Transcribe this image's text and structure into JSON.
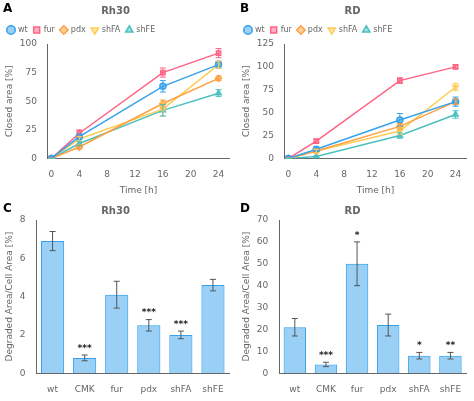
{
  "chart_data": [
    {
      "type": "line",
      "panel_label": "A",
      "title": "Rh30",
      "xlabel": "Time [h]",
      "ylabel": "Closed area [%]",
      "x": [
        0,
        4,
        16,
        24
      ],
      "series": [
        {
          "name": "wt",
          "values": [
            0,
            19,
            63,
            82
          ],
          "errors": [
            0,
            2,
            5,
            3
          ],
          "marker": "circle",
          "line_style": "solid"
        },
        {
          "name": "fur",
          "values": [
            0,
            22,
            75,
            92
          ],
          "errors": [
            0,
            3,
            4,
            4
          ],
          "marker": "square",
          "line_style": "solid"
        },
        {
          "name": "pdx",
          "values": [
            0,
            10,
            48,
            70
          ],
          "errors": [
            0,
            2,
            3,
            2
          ],
          "marker": "diamond",
          "line_style": "solid"
        },
        {
          "name": "shFA",
          "values": [
            0,
            17,
            43,
            82
          ],
          "errors": [
            0,
            2,
            6,
            3
          ],
          "marker": "triangle-down",
          "line_style": "solid"
        },
        {
          "name": "shFE",
          "values": [
            0,
            13,
            42,
            57
          ],
          "errors": [
            0,
            2,
            5,
            3
          ],
          "marker": "triangle-up",
          "line_style": "solid"
        }
      ],
      "xlim": [
        -0.5,
        25.5
      ],
      "xticks": [
        0,
        4,
        8,
        12,
        16,
        20,
        24
      ],
      "ylim": [
        0,
        100
      ],
      "yticks": [
        0,
        25,
        50,
        75,
        100
      ],
      "grid": false,
      "legend": "upper left"
    },
    {
      "type": "line",
      "panel_label": "B",
      "title": "RD",
      "xlabel": "Time [h]",
      "ylabel": "Closed area [%]",
      "x": [
        0,
        4,
        16,
        24
      ],
      "series": [
        {
          "name": "wt",
          "values": [
            0,
            10,
            42,
            62
          ],
          "errors": [
            0,
            2,
            7,
            5
          ],
          "marker": "circle",
          "line_style": "solid"
        },
        {
          "name": "fur",
          "values": [
            0,
            19,
            85,
            100
          ],
          "errors": [
            0,
            2,
            3,
            2
          ],
          "marker": "square",
          "line_style": "solid"
        },
        {
          "name": "pdx",
          "values": [
            0,
            8,
            35,
            62
          ],
          "errors": [
            0,
            2,
            3,
            3
          ],
          "marker": "diamond",
          "line_style": "solid"
        },
        {
          "name": "shFA",
          "values": [
            0,
            8,
            30,
            78
          ],
          "errors": [
            0,
            2,
            4,
            4
          ],
          "marker": "triangle-down",
          "line_style": "solid"
        },
        {
          "name": "shFE",
          "values": [
            0,
            2,
            25,
            48
          ],
          "errors": [
            0,
            1,
            3,
            4
          ],
          "marker": "triangle-up",
          "line_style": "solid"
        }
      ],
      "xlim": [
        -0.5,
        25.5
      ],
      "xticks": [
        0,
        4,
        8,
        12,
        16,
        20,
        24
      ],
      "ylim": [
        0,
        125
      ],
      "yticks": [
        0,
        25,
        50,
        75,
        100,
        125
      ],
      "grid": false,
      "legend": "upper left"
    },
    {
      "type": "bar",
      "panel_label": "C",
      "title": "Rh30",
      "ylabel": "Degraded Area/Cell Area [%]",
      "categories": [
        "wt",
        "CMK",
        "fur",
        "pdx",
        "shFA",
        "shFE"
      ],
      "values": [
        6.9,
        0.8,
        4.1,
        2.5,
        2.0,
        4.6
      ],
      "errors": [
        0.5,
        0.15,
        0.7,
        0.3,
        0.2,
        0.3
      ],
      "annotations": [
        null,
        "***",
        null,
        "***",
        "***",
        null
      ],
      "ylim": [
        0,
        8
      ],
      "yticks": [
        0,
        2,
        4,
        6,
        8
      ],
      "grid": false
    },
    {
      "type": "bar",
      "panel_label": "D",
      "title": "RD",
      "ylabel": "Degraded Area/Cell Area [%]",
      "categories": [
        "wt",
        "CMK",
        "fur",
        "pdx",
        "shFA",
        "shFE"
      ],
      "values": [
        21,
        4,
        50,
        22,
        8,
        8
      ],
      "errors": [
        4,
        1,
        10,
        5,
        1.5,
        1.5
      ],
      "annotations": [
        null,
        "***",
        "*",
        null,
        "*",
        "**"
      ],
      "ylim": [
        0,
        70
      ],
      "yticks": [
        0,
        10,
        20,
        30,
        40,
        50,
        60,
        70
      ],
      "grid": false
    }
  ]
}
